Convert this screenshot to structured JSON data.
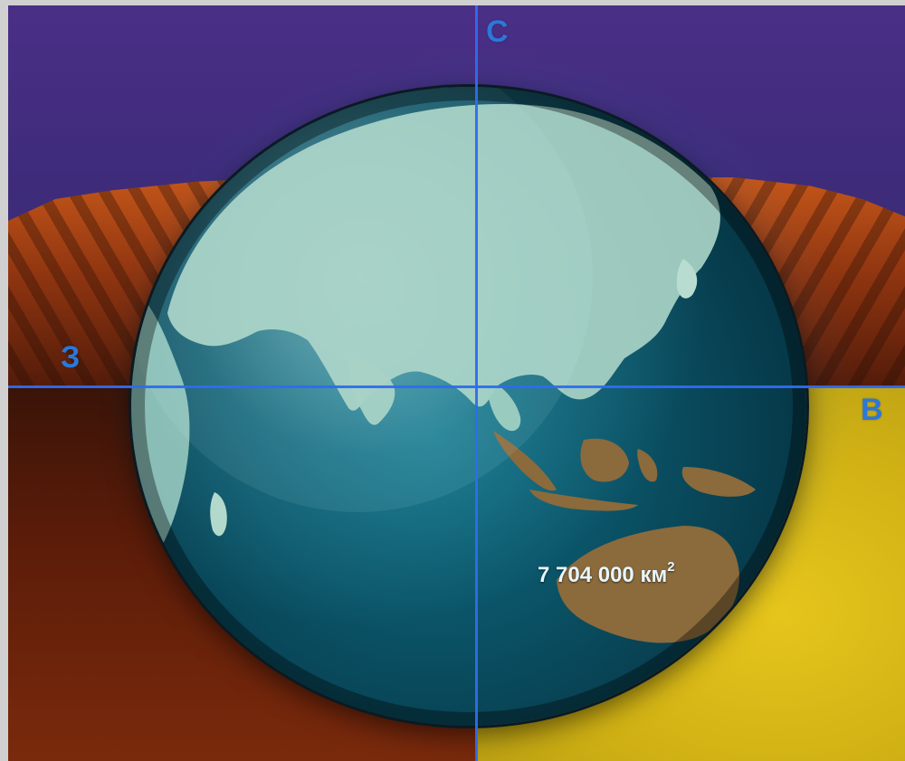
{
  "map": {
    "directions": {
      "north": "С",
      "west": "З",
      "east": "В"
    },
    "area_label": {
      "value": "7 704 000 км",
      "exponent": "2"
    },
    "regions_depicted": [
      "Asia",
      "Indian Ocean",
      "Australia",
      "Indonesia",
      "Africa",
      "Madagascar"
    ],
    "colors": {
      "axis": "#2f6cf0",
      "direction_label": "#2b78d8",
      "ocean": "#0b5468",
      "land": "#a9d3c6",
      "australia": "#8b6a3c",
      "sky": "#3f2c7c",
      "rock": "#8f3510",
      "sand": "#cfb014"
    }
  }
}
